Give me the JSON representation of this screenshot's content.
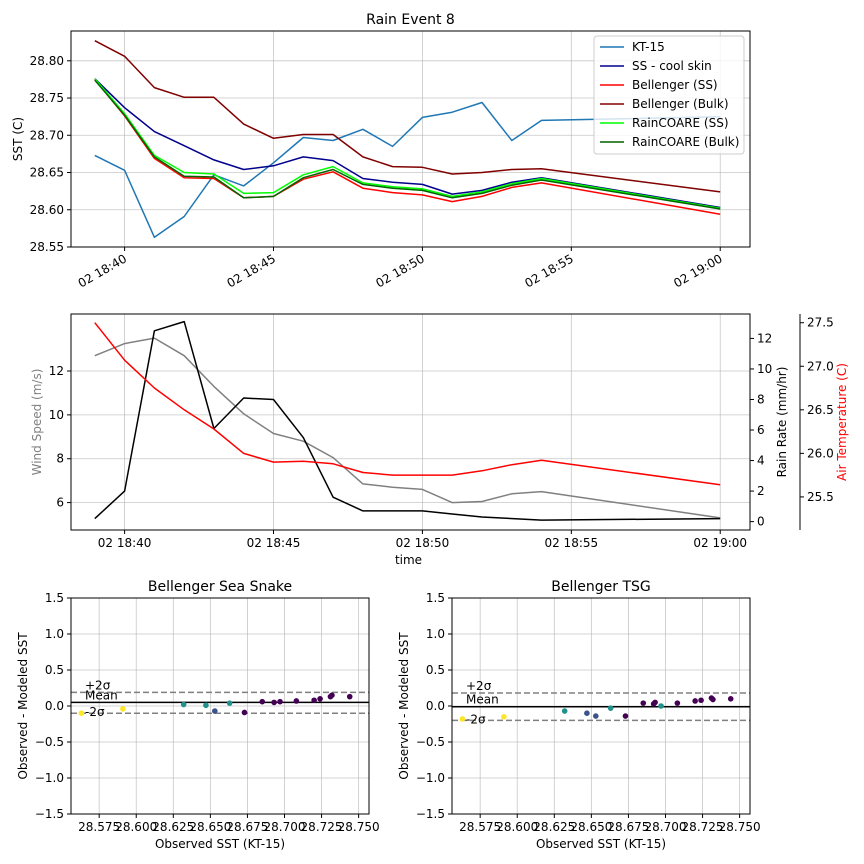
{
  "chart_data": [
    {
      "type": "line",
      "title": "Rain Event 8",
      "xlabel": "",
      "ylabel": "SST (C)",
      "x_tick_labels": [
        "02 18:40",
        "02 18:45",
        "02 18:50",
        "02 18:55",
        "02 19:00"
      ],
      "x_ticks_minutes": [
        40,
        45,
        50,
        55,
        60
      ],
      "xlim_minutes": [
        38.2,
        61.0
      ],
      "ylim": [
        28.55,
        28.84
      ],
      "y_ticks": [
        28.55,
        28.6,
        28.65,
        28.7,
        28.75,
        28.8
      ],
      "y_tick_labels": [
        "28.55",
        "28.60",
        "28.65",
        "28.70",
        "28.75",
        "28.80"
      ],
      "grid": true,
      "legend_position": "top-right",
      "x_minutes": [
        39,
        40,
        41,
        42,
        43,
        44,
        45,
        46,
        47,
        48,
        49,
        50,
        51,
        52,
        53,
        54,
        60
      ],
      "series": [
        {
          "name": "KT-15",
          "color": "#1f77b4",
          "values": [
            28.673,
            28.653,
            28.563,
            28.591,
            28.647,
            28.632,
            28.663,
            28.697,
            28.693,
            28.708,
            28.685,
            28.724,
            28.731,
            28.744,
            28.693,
            28.72,
            28.725
          ]
        },
        {
          "name": "SS - cool skin",
          "color": "#00008b",
          "values": [
            28.776,
            28.737,
            28.705,
            28.686,
            28.667,
            28.654,
            28.659,
            28.671,
            28.666,
            28.642,
            28.637,
            28.634,
            28.621,
            28.626,
            28.637,
            28.643,
            28.603
          ]
        },
        {
          "name": "Bellenger (SS)",
          "color": "#ff0000",
          "values": [
            28.775,
            28.726,
            28.669,
            28.643,
            28.642,
            28.616,
            28.618,
            28.641,
            28.651,
            28.629,
            28.623,
            28.62,
            28.611,
            28.618,
            28.63,
            28.636,
            28.594
          ]
        },
        {
          "name": "Bellenger (Bulk)",
          "color": "#800000",
          "values": [
            28.827,
            28.806,
            28.764,
            28.751,
            28.751,
            28.715,
            28.696,
            28.701,
            28.701,
            28.671,
            28.658,
            28.657,
            28.648,
            28.65,
            28.654,
            28.655,
            28.624
          ]
        },
        {
          "name": "RainCOARE (SS)",
          "color": "#00ff00",
          "values": [
            28.776,
            28.729,
            28.673,
            28.65,
            28.648,
            28.622,
            28.623,
            28.647,
            28.658,
            28.636,
            28.631,
            28.628,
            28.618,
            28.624,
            28.635,
            28.642,
            28.602
          ]
        },
        {
          "name": "RainCOARE (Bulk)",
          "color": "#006400",
          "values": [
            28.774,
            28.727,
            28.671,
            28.645,
            28.644,
            28.616,
            28.618,
            28.643,
            28.654,
            28.634,
            28.629,
            28.626,
            28.616,
            28.622,
            28.633,
            28.64,
            28.601
          ]
        }
      ]
    },
    {
      "type": "line",
      "title": "",
      "xlabel": "time",
      "x_tick_labels": [
        "02 18:40",
        "02 18:45",
        "02 18:50",
        "02 18:55",
        "02 19:00"
      ],
      "x_ticks_minutes": [
        40,
        45,
        50,
        55,
        60
      ],
      "xlim_minutes": [
        38.2,
        61.0
      ],
      "grid": true,
      "axes": [
        {
          "side": "left",
          "label": "Wind Speed (m/s)",
          "color": "#808080",
          "ylim": [
            4.75,
            14.6
          ],
          "ticks": [
            6,
            8,
            10,
            12
          ]
        },
        {
          "side": "right",
          "label": "Rain Rate (mm/hr)",
          "color": "#000000",
          "ylim": [
            -0.55,
            13.6
          ],
          "ticks": [
            0,
            2,
            4,
            6,
            8,
            10,
            12
          ]
        },
        {
          "side": "right-outer",
          "label": "Air Temperature (C)",
          "color": "#ff0000",
          "ylim": [
            25.12,
            27.6
          ],
          "ticks": [
            25.5,
            26.0,
            26.5,
            27.0,
            27.5
          ],
          "tick_labels": [
            "25.5",
            "26.0",
            "26.5",
            "27.0",
            "27.5"
          ]
        }
      ],
      "series": [
        {
          "name": "",
          "axis": "left",
          "color": "#808080",
          "x_minutes": [
            39,
            40,
            41,
            42,
            43,
            44,
            45,
            46,
            47,
            48,
            49,
            50,
            51,
            52,
            53,
            54,
            60
          ],
          "values": [
            12.7,
            13.25,
            13.5,
            12.7,
            11.3,
            10.05,
            9.15,
            8.8,
            8.05,
            6.85,
            6.7,
            6.6,
            6.0,
            6.05,
            6.4,
            6.5,
            5.3
          ]
        },
        {
          "name": "",
          "axis": "right",
          "color": "#000000",
          "x_minutes": [
            39,
            40,
            41,
            42,
            43,
            44,
            45,
            46,
            47,
            48,
            50,
            51,
            52,
            54,
            60
          ],
          "values": [
            0.2,
            2.0,
            12.5,
            13.1,
            6.1,
            8.1,
            8.0,
            5.5,
            1.6,
            0.7,
            0.7,
            0.5,
            0.3,
            0.1,
            0.2
          ]
        },
        {
          "name": "",
          "axis": "right-outer",
          "color": "#ff0000",
          "x_minutes": [
            39,
            40,
            41,
            42,
            43,
            44,
            45,
            46,
            47,
            48,
            49,
            50,
            51,
            52,
            53,
            54,
            60
          ],
          "values": [
            27.5,
            27.07,
            26.75,
            26.5,
            26.28,
            26.0,
            25.9,
            25.91,
            25.88,
            25.78,
            25.75,
            25.75,
            25.75,
            25.8,
            25.87,
            25.92,
            25.64
          ]
        }
      ]
    },
    {
      "type": "scatter",
      "title": "Bellenger Sea Snake",
      "xlabel": "Observed SST (KT-15)",
      "ylabel": "Observed - Modeled SST",
      "xlim": [
        28.556,
        28.757
      ],
      "ylim": [
        -1.5,
        1.5
      ],
      "x_ticks": [
        28.575,
        28.6,
        28.625,
        28.65,
        28.675,
        28.7,
        28.725,
        28.75
      ],
      "x_tick_labels": [
        "28.575",
        "28.600",
        "28.625",
        "28.650",
        "28.675",
        "28.700",
        "28.725",
        "28.750"
      ],
      "y_ticks": [
        -1.5,
        -1.0,
        -0.5,
        0.0,
        0.5,
        1.0,
        1.5
      ],
      "y_tick_labels": [
        "−1.5",
        "−1.0",
        "−0.5",
        "0.0",
        "0.5",
        "1.0",
        "1.5"
      ],
      "grid": true,
      "mean": 0.05,
      "plus_2sigma": 0.19,
      "minus_2sigma": -0.1,
      "annotations": [
        "+2σ",
        "Mean",
        "-2σ"
      ],
      "points": [
        {
          "x": 28.563,
          "y": -0.1,
          "color": "#fde725"
        },
        {
          "x": 28.591,
          "y": -0.04,
          "color": "#fde725"
        },
        {
          "x": 28.632,
          "y": 0.02,
          "color": "#21918c"
        },
        {
          "x": 28.647,
          "y": 0.01,
          "color": "#21918c"
        },
        {
          "x": 28.653,
          "y": -0.07,
          "color": "#3b528b"
        },
        {
          "x": 28.663,
          "y": 0.04,
          "color": "#21918c"
        },
        {
          "x": 28.673,
          "y": -0.09,
          "color": "#440154"
        },
        {
          "x": 28.685,
          "y": 0.06,
          "color": "#440154"
        },
        {
          "x": 28.693,
          "y": 0.05,
          "color": "#440154"
        },
        {
          "x": 28.697,
          "y": 0.06,
          "color": "#440154"
        },
        {
          "x": 28.708,
          "y": 0.07,
          "color": "#440154"
        },
        {
          "x": 28.72,
          "y": 0.08,
          "color": "#440154"
        },
        {
          "x": 28.724,
          "y": 0.1,
          "color": "#440154"
        },
        {
          "x": 28.731,
          "y": 0.13,
          "color": "#440154"
        },
        {
          "x": 28.732,
          "y": 0.15,
          "color": "#440154"
        },
        {
          "x": 28.744,
          "y": 0.13,
          "color": "#440154"
        }
      ]
    },
    {
      "type": "scatter",
      "title": "Bellenger TSG",
      "xlabel": "Observed SST (KT-15)",
      "ylabel": "Observed - Modeled SST",
      "xlim": [
        28.556,
        28.757
      ],
      "ylim": [
        -1.5,
        1.5
      ],
      "x_ticks": [
        28.575,
        28.6,
        28.625,
        28.65,
        28.675,
        28.7,
        28.725,
        28.75
      ],
      "x_tick_labels": [
        "28.575",
        "28.600",
        "28.625",
        "28.650",
        "28.675",
        "28.700",
        "28.725",
        "28.750"
      ],
      "y_ticks": [
        -1.5,
        -1.0,
        -0.5,
        0.0,
        0.5,
        1.0,
        1.5
      ],
      "y_tick_labels": [
        "−1.5",
        "−1.0",
        "−0.5",
        "0.0",
        "0.5",
        "1.0",
        "1.5"
      ],
      "grid": true,
      "mean": -0.01,
      "plus_2sigma": 0.18,
      "minus_2sigma": -0.2,
      "annotations": [
        "+2σ",
        "Mean",
        "-2σ"
      ],
      "points": [
        {
          "x": 28.563,
          "y": -0.18,
          "color": "#fde725"
        },
        {
          "x": 28.591,
          "y": -0.15,
          "color": "#fde725"
        },
        {
          "x": 28.632,
          "y": -0.07,
          "color": "#21918c"
        },
        {
          "x": 28.647,
          "y": -0.1,
          "color": "#3b528b"
        },
        {
          "x": 28.653,
          "y": -0.14,
          "color": "#3b528b"
        },
        {
          "x": 28.663,
          "y": -0.03,
          "color": "#21918c"
        },
        {
          "x": 28.673,
          "y": -0.14,
          "color": "#440154"
        },
        {
          "x": 28.685,
          "y": 0.04,
          "color": "#440154"
        },
        {
          "x": 28.692,
          "y": 0.03,
          "color": "#440154"
        },
        {
          "x": 28.693,
          "y": 0.05,
          "color": "#440154"
        },
        {
          "x": 28.697,
          "y": 0.0,
          "color": "#21918c"
        },
        {
          "x": 28.708,
          "y": 0.04,
          "color": "#440154"
        },
        {
          "x": 28.72,
          "y": 0.07,
          "color": "#440154"
        },
        {
          "x": 28.724,
          "y": 0.08,
          "color": "#440154"
        },
        {
          "x": 28.731,
          "y": 0.11,
          "color": "#440154"
        },
        {
          "x": 28.732,
          "y": 0.09,
          "color": "#440154"
        },
        {
          "x": 28.744,
          "y": 0.1,
          "color": "#440154"
        }
      ]
    }
  ]
}
